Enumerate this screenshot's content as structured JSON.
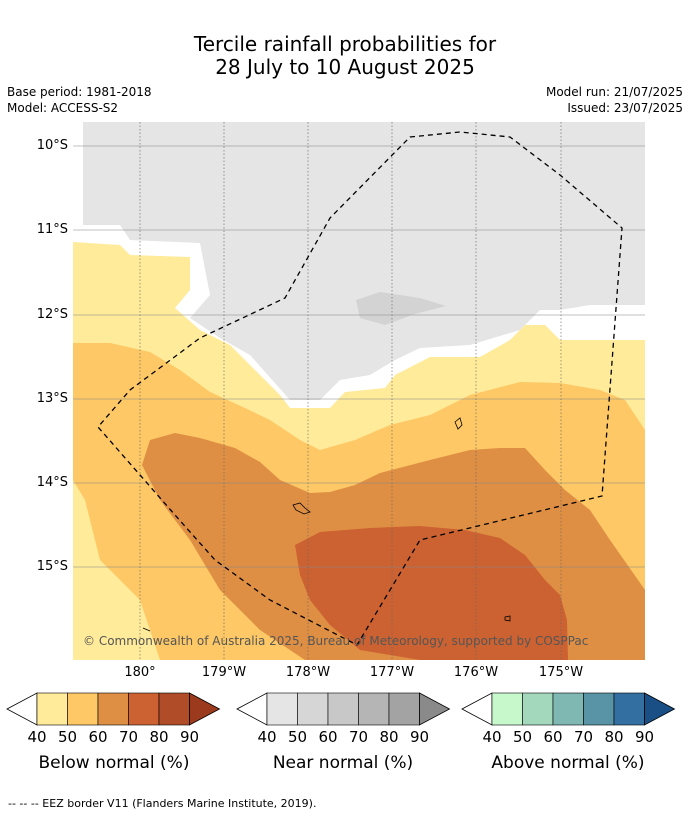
{
  "title": {
    "line1": "Tercile rainfall probabilities for",
    "line2": "28 July to 10 August 2025"
  },
  "meta": {
    "base_period": "Base period: 1981-2018",
    "model": "Model: ACCESS-S2",
    "model_run": "Model run: 21/07/2025",
    "issued": "Issued: 23/07/2025"
  },
  "map": {
    "lat_labels": [
      "10°S",
      "11°S",
      "12°S",
      "13°S",
      "14°S",
      "15°S"
    ],
    "lon_labels": [
      "180°",
      "179°W",
      "178°W",
      "177°W",
      "176°W",
      "175°W"
    ],
    "copyright": "© Commonwealth of Australia 2025, Bureau of Meteorology, supported by COSPPac"
  },
  "legends": [
    {
      "title": "Below normal (%)",
      "ticks": [
        "40",
        "50",
        "60",
        "70",
        "80",
        "90"
      ],
      "colors": [
        "#ffeb9a",
        "#fdc865",
        "#df8f44",
        "#cc6232",
        "#b04c27",
        "#9c3a1e"
      ]
    },
    {
      "title": "Near normal (%)",
      "ticks": [
        "40",
        "50",
        "60",
        "70",
        "80",
        "90"
      ],
      "colors": [
        "#e5e5e5",
        "#d6d6d6",
        "#c8c8c8",
        "#b5b5b5",
        "#a3a3a3",
        "#8a8a8a"
      ]
    },
    {
      "title": "Above normal (%)",
      "ticks": [
        "40",
        "50",
        "60",
        "70",
        "80",
        "90"
      ],
      "colors": [
        "#c6f8cc",
        "#a3d8bd",
        "#7fb8b3",
        "#5893a6",
        "#336fa0",
        "#1a4f85"
      ]
    }
  ],
  "footer": "--  --  -- EEZ border V11 (Flanders Marine Institute, 2019)."
}
